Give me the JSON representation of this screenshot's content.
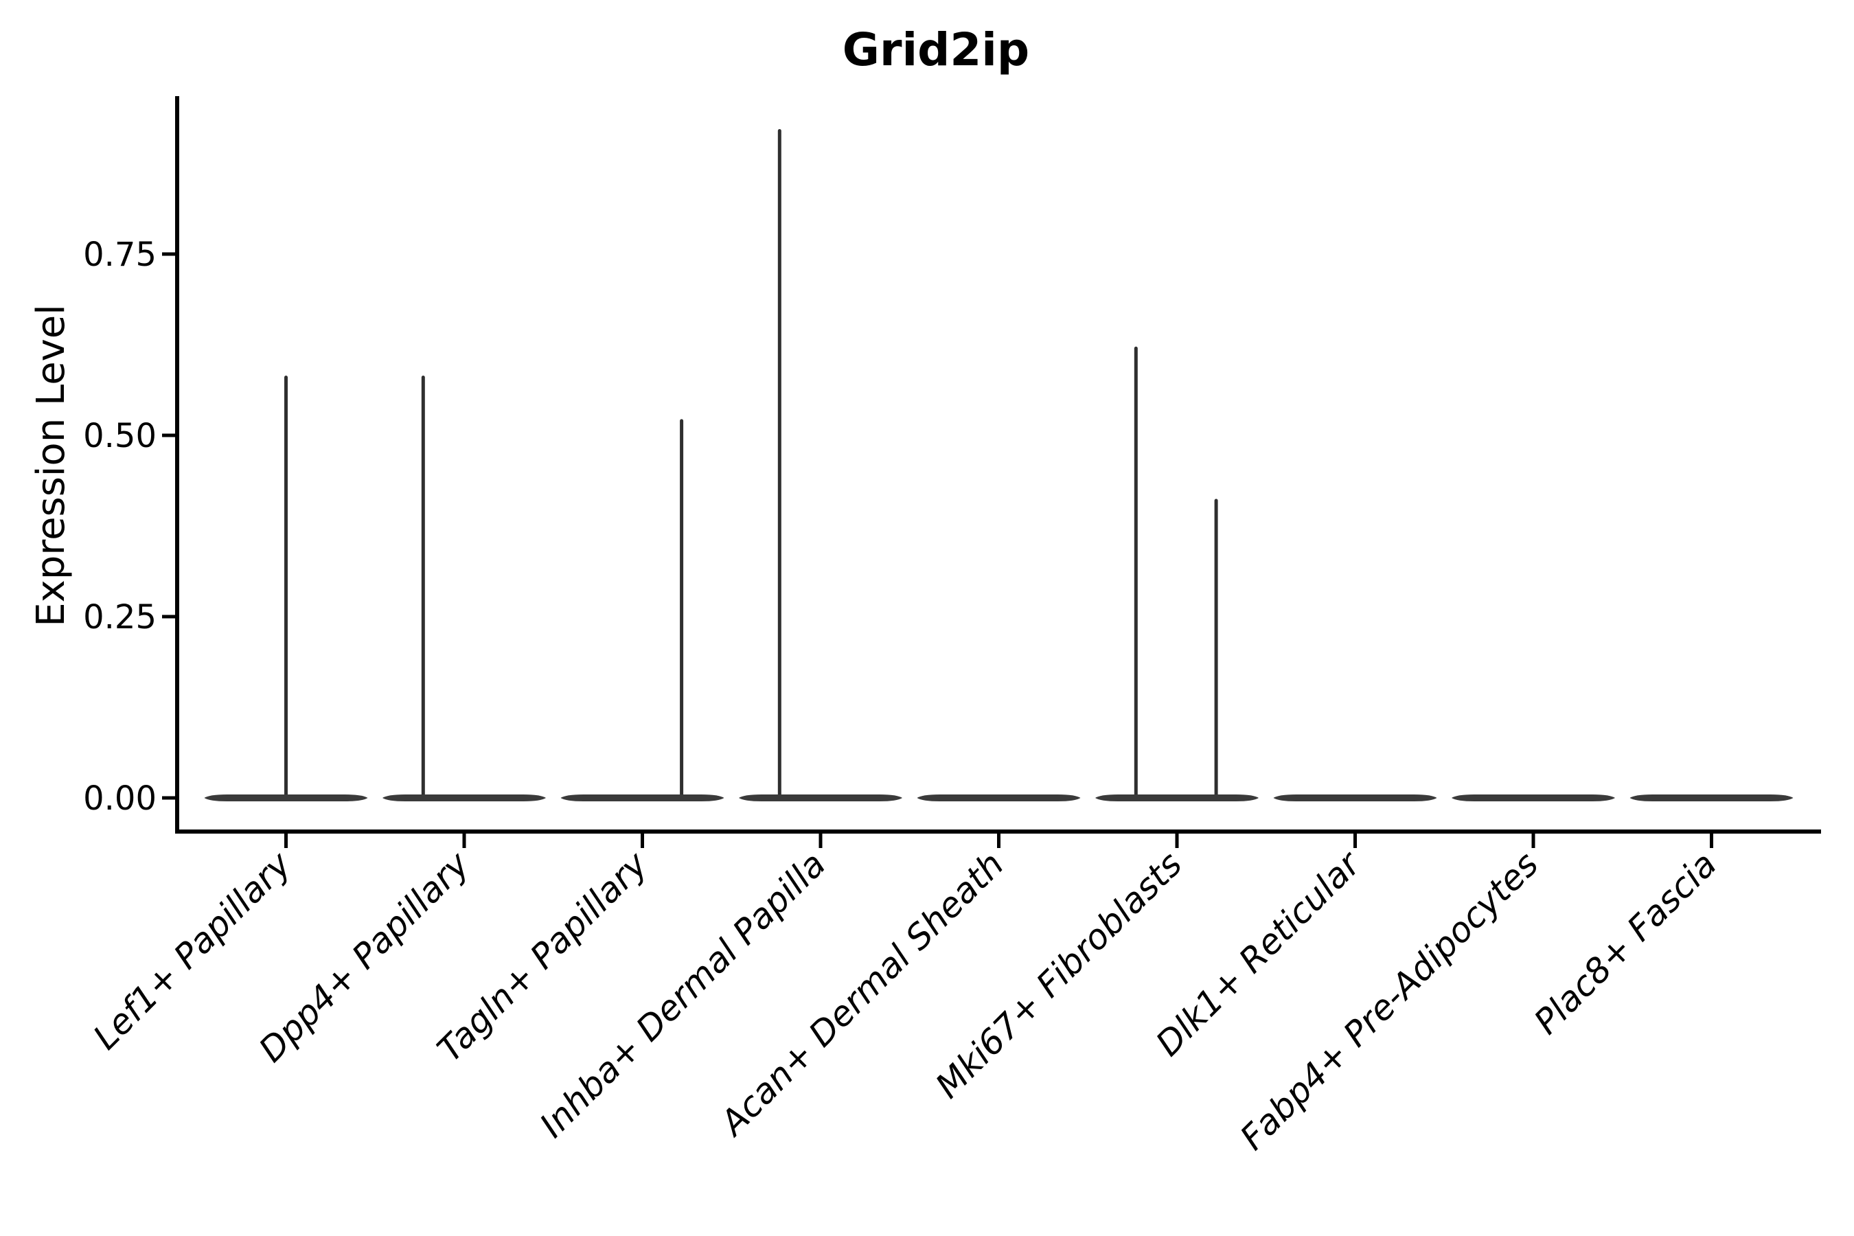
{
  "figure": {
    "background": "#ffffff"
  },
  "chart_data": {
    "type": "violin",
    "title": "Grid2ip",
    "xlabel": "",
    "ylabel": "Expression Level",
    "ylim": [
      0,
      0.97
    ],
    "grid": false,
    "legend": "none",
    "x_tick_rotation_deg": 45,
    "x_tick_style": "italic",
    "y_ticks": [
      {
        "value": 0.0,
        "label": "0.00"
      },
      {
        "value": 0.25,
        "label": "0.25"
      },
      {
        "value": 0.5,
        "label": "0.50"
      },
      {
        "value": 0.75,
        "label": "0.75"
      }
    ],
    "categories": [
      "Lef1+ Papillary",
      "Dpp4+ Papillary",
      "Tagln+ Papillary",
      "Inhba+ Dermal Papilla",
      "Acan+ Dermal Sheath",
      "Mki67+ Fibroblasts",
      "Dlk1+ Reticular",
      "Fabp4+ Pre-Adipocytes",
      "Plac8+ Fascia"
    ],
    "violins": [
      {
        "category": "Lef1+ Papillary",
        "zero_body": true,
        "spikes": [
          {
            "offset_frac": 0.0,
            "value": 0.58
          }
        ]
      },
      {
        "category": "Dpp4+ Papillary",
        "zero_body": true,
        "spikes": [
          {
            "offset_frac": -0.23,
            "value": 0.58
          }
        ]
      },
      {
        "category": "Tagln+ Papillary",
        "zero_body": true,
        "spikes": [
          {
            "offset_frac": 0.22,
            "value": 0.52
          }
        ]
      },
      {
        "category": "Inhba+ Dermal Papilla",
        "zero_body": true,
        "spikes": [
          {
            "offset_frac": -0.23,
            "value": 0.92
          }
        ]
      },
      {
        "category": "Acan+ Dermal Sheath",
        "zero_body": true,
        "spikes": []
      },
      {
        "category": "Mki67+ Fibroblasts",
        "zero_body": true,
        "spikes": [
          {
            "offset_frac": -0.23,
            "value": 0.62
          },
          {
            "offset_frac": 0.22,
            "value": 0.41
          }
        ]
      },
      {
        "category": "Dlk1+ Reticular",
        "zero_body": true,
        "spikes": []
      },
      {
        "category": "Fabp4+ Pre-Adipocytes",
        "zero_body": true,
        "spikes": []
      },
      {
        "category": "Plac8+ Fascia",
        "zero_body": true,
        "spikes": []
      }
    ],
    "colors": {
      "violin": "#3a3a3a",
      "spike": "#2f2f2f",
      "axis": "#000000",
      "text": "#000000",
      "background": "#ffffff"
    }
  }
}
